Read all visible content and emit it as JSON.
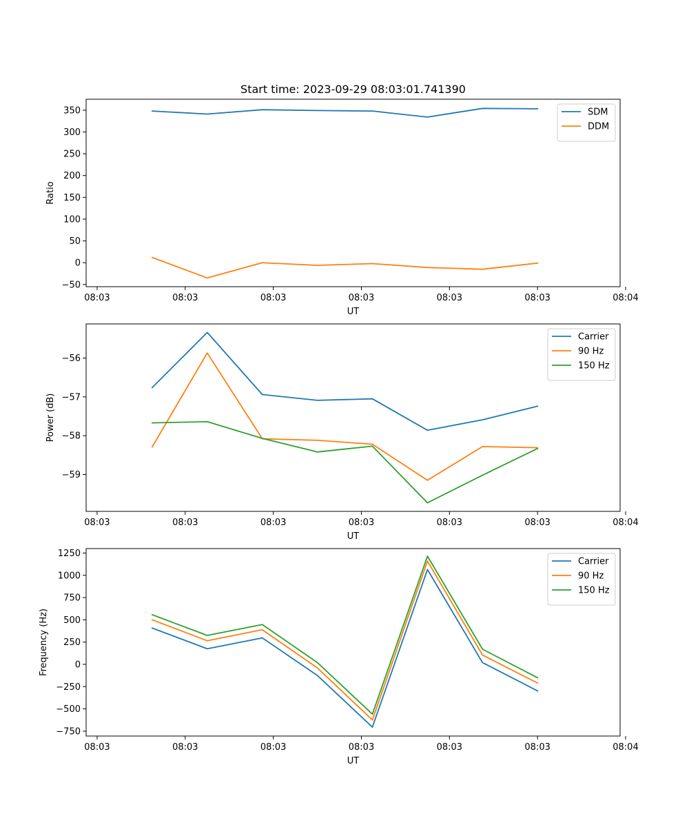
{
  "chart_data": [
    {
      "type": "line",
      "title": "Start time: 2023-09-29 08:03:01.741390",
      "xlabel": "UT",
      "ylabel": "Ratio",
      "x": [
        0.5,
        1.0,
        1.5,
        2.0,
        2.5,
        3.0,
        3.5,
        4.0
      ],
      "xlim": [
        -0.1,
        4.75
      ],
      "x_ticks": [
        0,
        0.8,
        1.6,
        2.4,
        3.2,
        4.0,
        4.8
      ],
      "x_tick_labels": [
        "08:03",
        "08:03",
        "08:03",
        "08:03",
        "08:03",
        "08:03",
        "08:04"
      ],
      "ylim": [
        -55,
        375
      ],
      "y_ticks": [
        -50,
        0,
        50,
        100,
        150,
        200,
        250,
        300,
        350
      ],
      "y_tick_labels": [
        "−50",
        "0",
        "50",
        "100",
        "150",
        "200",
        "250",
        "300",
        "350"
      ],
      "legend_position": "upper right",
      "series": [
        {
          "name": "SDM",
          "color": "#1f77b4",
          "values": [
            348,
            341,
            351,
            349,
            348,
            334,
            354,
            353
          ]
        },
        {
          "name": "DDM",
          "color": "#ff7f0e",
          "values": [
            12,
            -35,
            0,
            -6,
            -2,
            -11,
            -15,
            -1
          ]
        }
      ]
    },
    {
      "type": "line",
      "title": "",
      "xlabel": "UT",
      "ylabel": "Power (dB)",
      "x": [
        0.5,
        1.0,
        1.5,
        2.0,
        2.5,
        3.0,
        3.5,
        4.0
      ],
      "xlim": [
        -0.1,
        4.75
      ],
      "x_ticks": [
        0,
        0.8,
        1.6,
        2.4,
        3.2,
        4.0,
        4.8
      ],
      "x_tick_labels": [
        "08:03",
        "08:03",
        "08:03",
        "08:03",
        "08:03",
        "08:03",
        "08:04"
      ],
      "ylim": [
        -59.95,
        -55.12
      ],
      "y_ticks": [
        -59,
        -58,
        -57,
        -56
      ],
      "y_tick_labels": [
        "−59",
        "−58",
        "−57",
        "−56"
      ],
      "legend_position": "upper right",
      "series": [
        {
          "name": "Carrier",
          "color": "#1f77b4",
          "values": [
            -56.76,
            -55.34,
            -56.94,
            -57.09,
            -57.05,
            -57.86,
            -57.59,
            -57.24
          ]
        },
        {
          "name": "90 Hz",
          "color": "#ff7f0e",
          "values": [
            -58.29,
            -55.87,
            -58.08,
            -58.12,
            -58.22,
            -59.15,
            -58.28,
            -58.31
          ]
        },
        {
          "name": "150 Hz",
          "color": "#2ca02c",
          "values": [
            -57.67,
            -57.64,
            -58.07,
            -58.42,
            -58.27,
            -59.73,
            -59.02,
            -58.33
          ]
        }
      ]
    },
    {
      "type": "line",
      "title": "",
      "xlabel": "UT",
      "ylabel": "Frequency (Hz)",
      "x": [
        0.5,
        1.0,
        1.5,
        2.0,
        2.5,
        3.0,
        3.5,
        4.0
      ],
      "xlim": [
        -0.1,
        4.75
      ],
      "x_ticks": [
        0,
        0.8,
        1.6,
        2.4,
        3.2,
        4.0,
        4.8
      ],
      "x_tick_labels": [
        "08:03",
        "08:03",
        "08:03",
        "08:03",
        "08:03",
        "08:03",
        "08:04"
      ],
      "ylim": [
        -805,
        1300
      ],
      "y_ticks": [
        -750,
        -500,
        -250,
        0,
        250,
        500,
        750,
        1000,
        1250
      ],
      "y_tick_labels": [
        "−750",
        "−500",
        "−250",
        "0",
        "250",
        "500",
        "750",
        "1000",
        "1250"
      ],
      "legend_position": "upper right",
      "series": [
        {
          "name": "Carrier",
          "color": "#1f77b4",
          "values": [
            408,
            175,
            297,
            -125,
            -705,
            1065,
            20,
            -298
          ]
        },
        {
          "name": "90 Hz",
          "color": "#ff7f0e",
          "values": [
            500,
            265,
            388,
            -40,
            -625,
            1160,
            105,
            -210
          ]
        },
        {
          "name": "150 Hz",
          "color": "#2ca02c",
          "values": [
            557,
            325,
            447,
            20,
            -560,
            1215,
            170,
            -150
          ]
        }
      ]
    }
  ]
}
